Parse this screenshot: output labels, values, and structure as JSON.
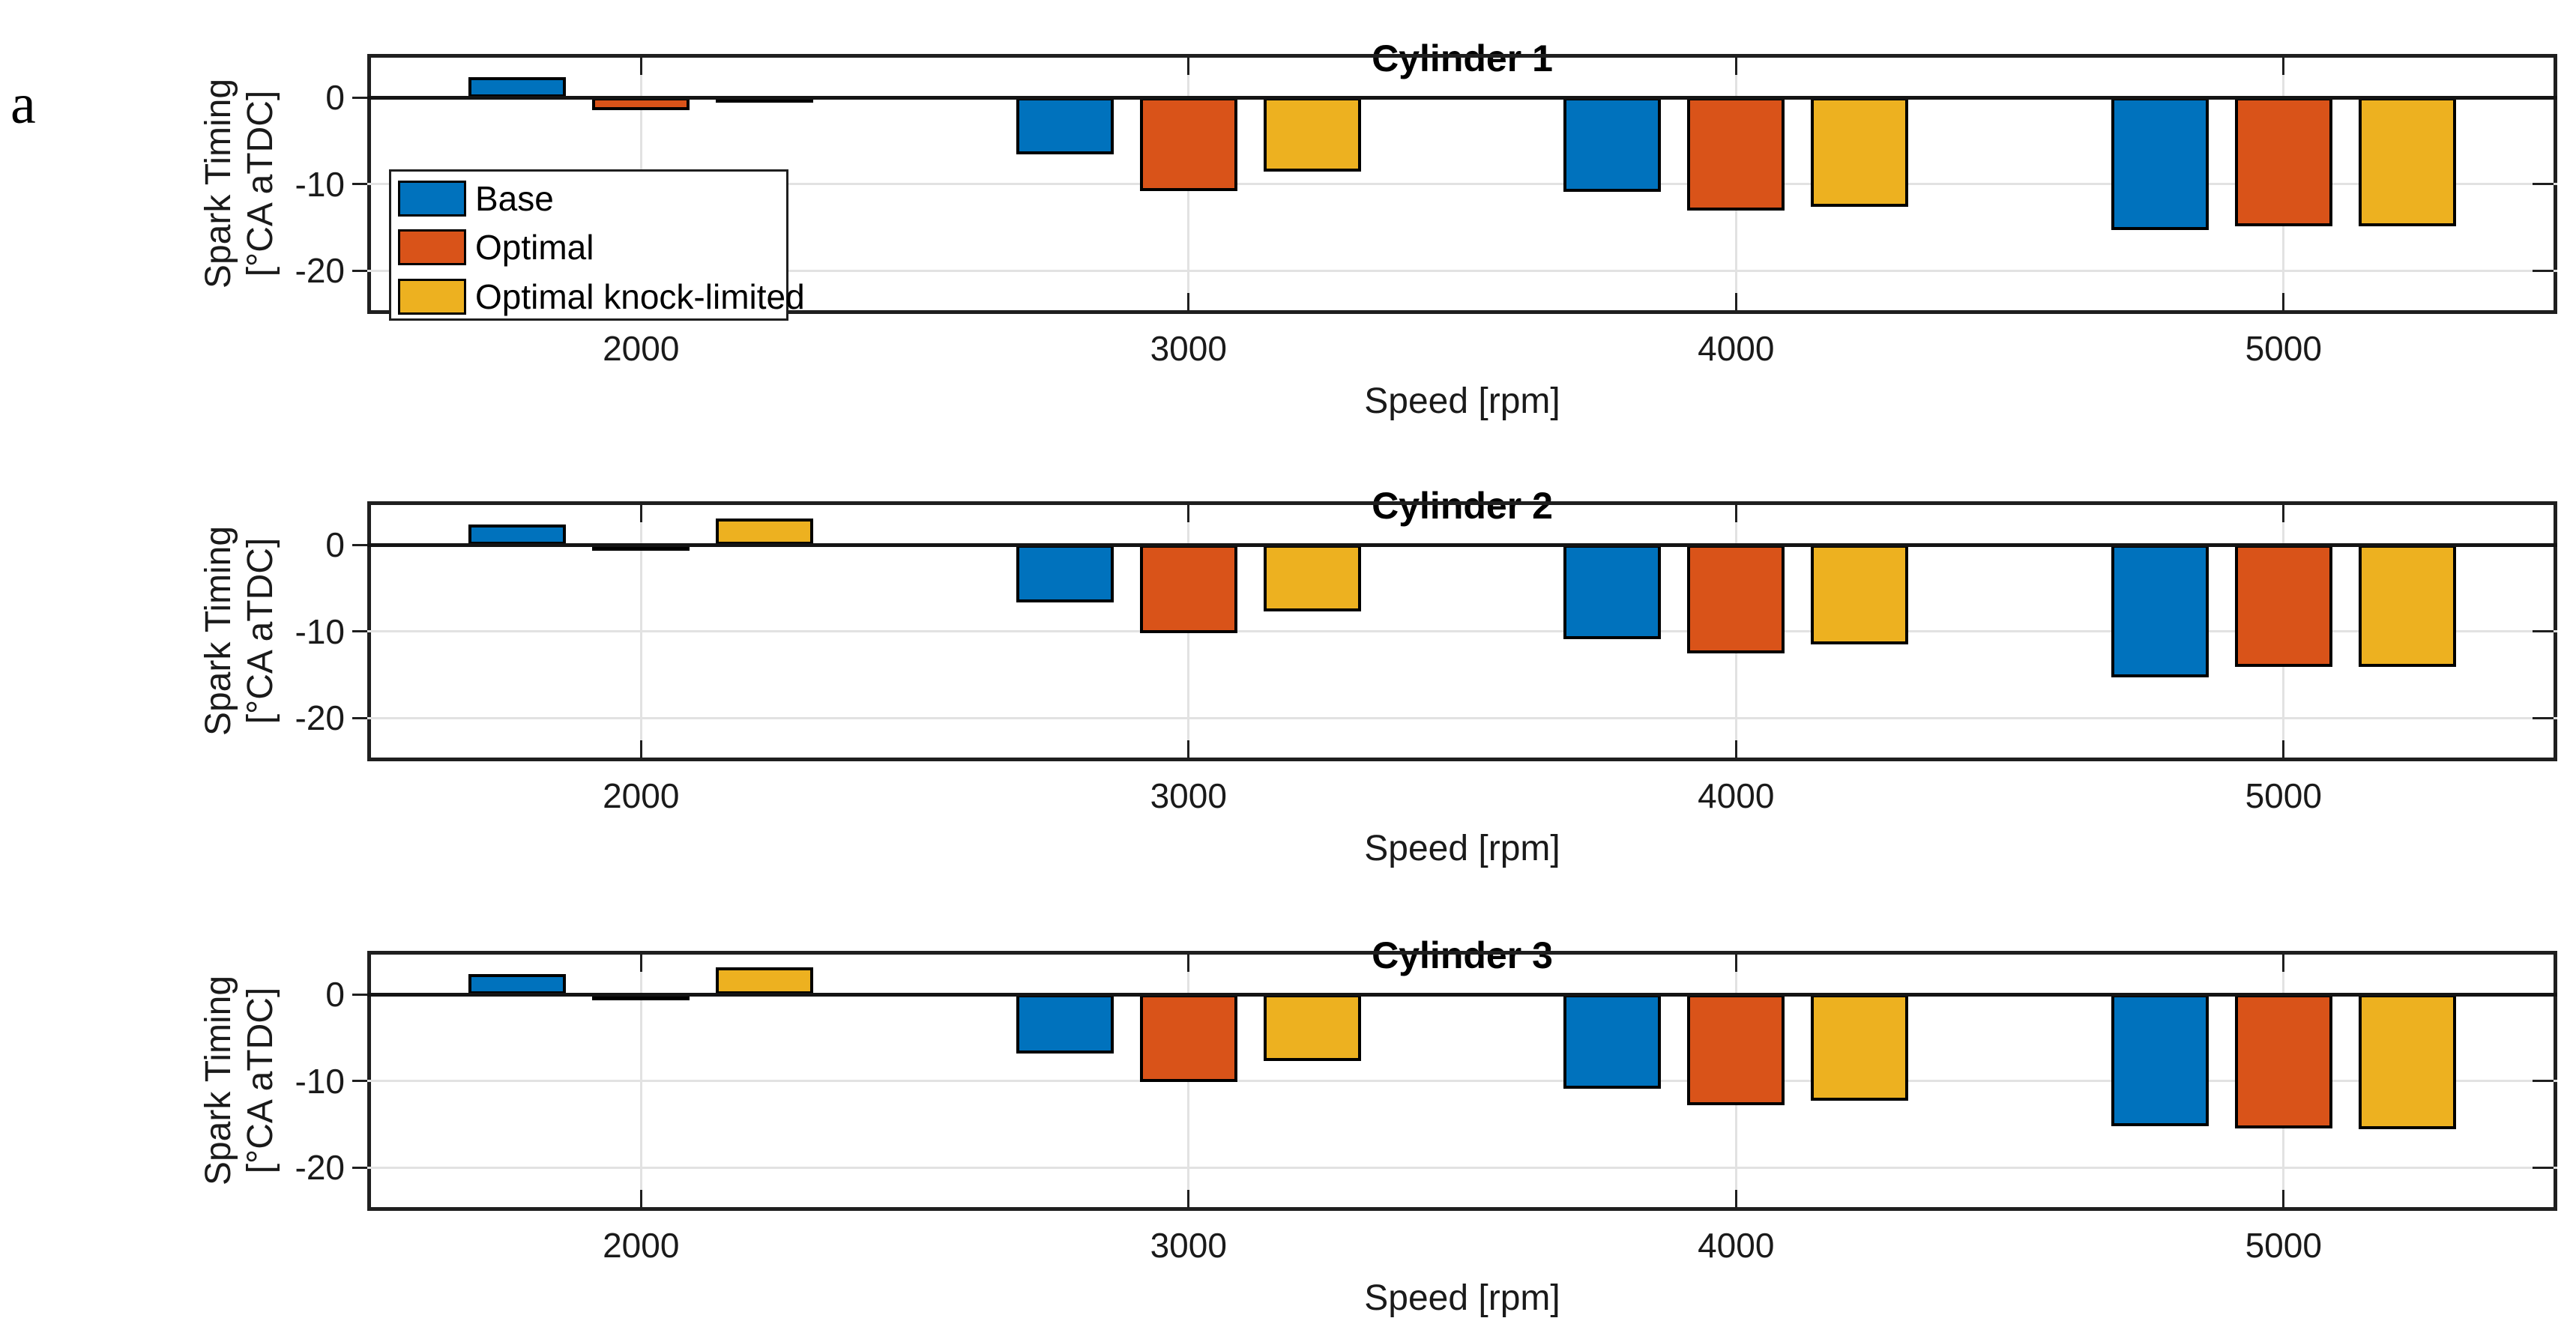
{
  "panel_label": "a",
  "ylabel": {
    "line1": "Spark Timing",
    "line2": "[°CA aTDC]"
  },
  "xlabel": "Speed [rpm]",
  "colors": {
    "base": "#0072BD",
    "optimal": "#D95319",
    "knock_limited": "#EDB120",
    "grid": "#e2e2e2",
    "axis": "#1f1f1f",
    "zero_line": "#141414"
  },
  "legend": {
    "position": "southwest-inside",
    "entries": [
      "Base",
      "Optimal",
      "Optimal knock-limited"
    ]
  },
  "chart_data": [
    {
      "type": "bar",
      "title": "Cylinder 1",
      "xlabel": "Speed [rpm]",
      "ylabel": "Spark Timing [°CA aTDC]",
      "categories": [
        2000,
        3000,
        4000,
        5000
      ],
      "ylim": [
        -25,
        5
      ],
      "yticks": [
        0,
        -10,
        -20
      ],
      "grid": true,
      "legend": {
        "visible": true,
        "entries": [
          "Base",
          "Optimal",
          "Optimal knock-limited"
        ]
      },
      "series": [
        {
          "name": "Base",
          "color": "#0072BD",
          "values": [
            2.3,
            -6.6,
            -10.9,
            -15.3
          ]
        },
        {
          "name": "Optimal",
          "color": "#D95319",
          "values": [
            -1.5,
            -10.8,
            -13.1,
            -14.9
          ]
        },
        {
          "name": "Optimal knock-limited",
          "color": "#EDB120",
          "values": [
            0.1,
            -8.6,
            -12.6,
            -14.9
          ]
        }
      ]
    },
    {
      "type": "bar",
      "title": "Cylinder 2",
      "xlabel": "Speed [rpm]",
      "ylabel": "Spark Timing [°CA aTDC]",
      "categories": [
        2000,
        3000,
        4000,
        5000
      ],
      "ylim": [
        -25,
        5
      ],
      "yticks": [
        0,
        -10,
        -20
      ],
      "grid": true,
      "legend": {
        "visible": false
      },
      "series": [
        {
          "name": "Base",
          "color": "#0072BD",
          "values": [
            2.3,
            -6.7,
            -10.9,
            -15.3
          ]
        },
        {
          "name": "Optimal",
          "color": "#D95319",
          "values": [
            -0.5,
            -10.2,
            -12.5,
            -14.1
          ]
        },
        {
          "name": "Optimal knock-limited",
          "color": "#EDB120",
          "values": [
            3.0,
            -7.7,
            -11.5,
            -14.1
          ]
        }
      ]
    },
    {
      "type": "bar",
      "title": "Cylinder 3",
      "xlabel": "Speed [rpm]",
      "ylabel": "Spark Timing [°CA aTDC]",
      "categories": [
        2000,
        3000,
        4000,
        5000
      ],
      "ylim": [
        -25,
        5
      ],
      "yticks": [
        0,
        -10,
        -20
      ],
      "grid": true,
      "legend": {
        "visible": false
      },
      "series": [
        {
          "name": "Base",
          "color": "#0072BD",
          "values": [
            2.3,
            -6.8,
            -10.9,
            -15.2
          ]
        },
        {
          "name": "Optimal",
          "color": "#D95319",
          "values": [
            -0.4,
            -10.1,
            -12.8,
            -15.5
          ]
        },
        {
          "name": "Optimal knock-limited",
          "color": "#EDB120",
          "values": [
            3.1,
            -7.7,
            -12.3,
            -15.6
          ]
        }
      ]
    }
  ]
}
